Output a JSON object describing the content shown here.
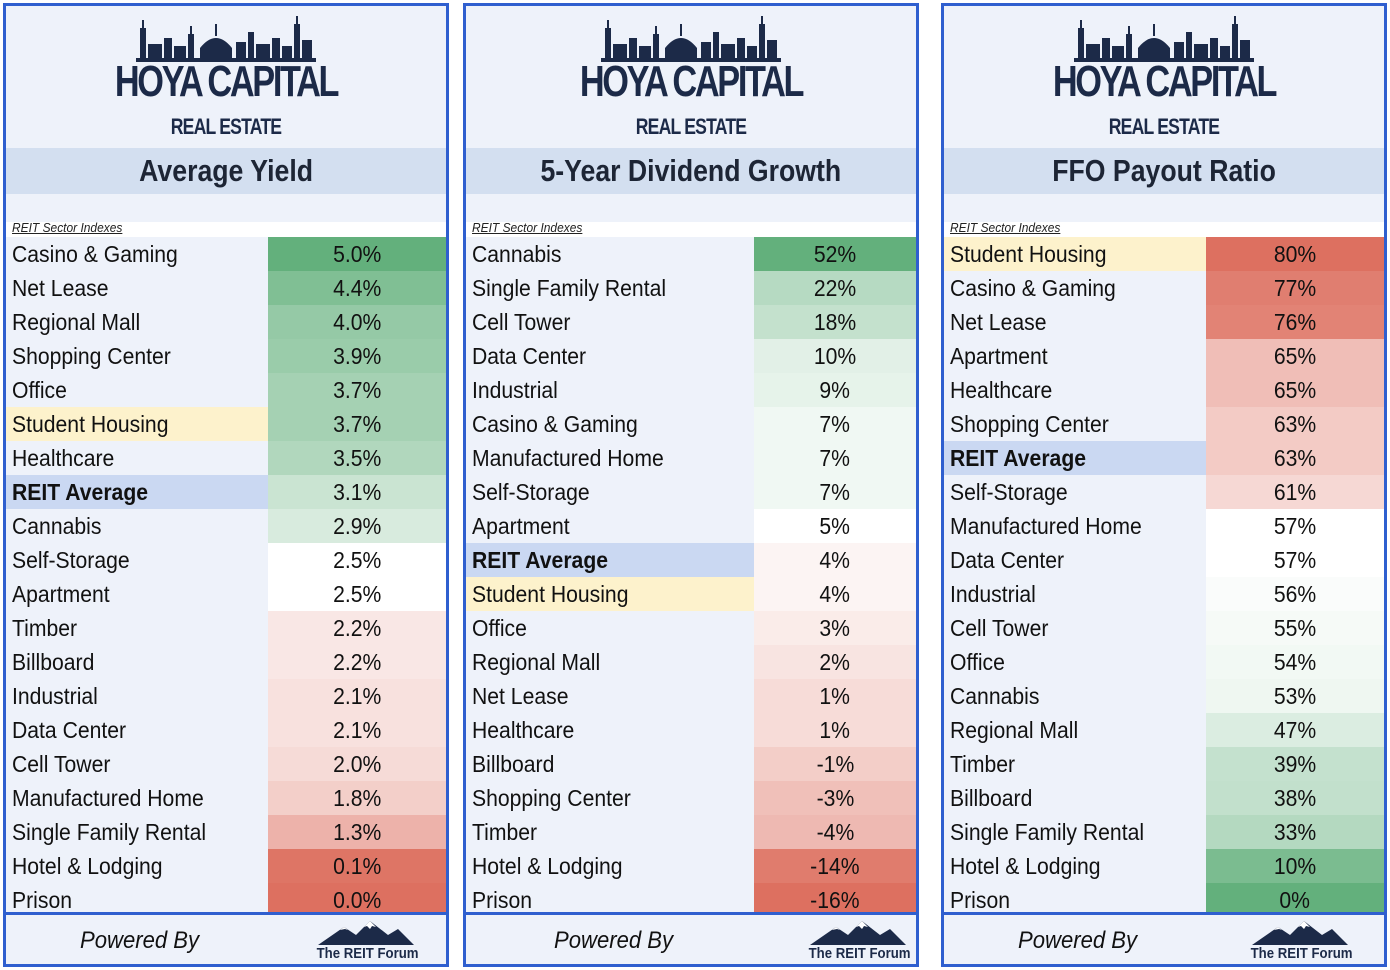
{
  "brand": {
    "name": "HOYA CAPITAL",
    "sub": "REAL ESTATE",
    "powered_by": "Powered By",
    "forum": "The REIT Forum"
  },
  "colors": {
    "border": "#2f5fcf",
    "title_band": "#d3dff0",
    "label_bg": "#eef2fa",
    "reit_average_label": "#cad8f2",
    "student_housing_label": "#fdf2cc",
    "scale_green": "#63b07c",
    "scale_mid": "#ffffff",
    "scale_red": "#dd7060"
  },
  "chart_data": [
    {
      "type": "table",
      "title": "Average Yield",
      "subheader": "REIT Sector Indexes",
      "value_suffix": "%",
      "color_scale": "high-green",
      "rows": [
        {
          "label": "Casino & Gaming",
          "value": 5.0,
          "display": "5.0%"
        },
        {
          "label": "Net Lease",
          "value": 4.4,
          "display": "4.4%"
        },
        {
          "label": "Regional Mall",
          "value": 4.0,
          "display": "4.0%"
        },
        {
          "label": "Shopping Center",
          "value": 3.9,
          "display": "3.9%"
        },
        {
          "label": "Office",
          "value": 3.7,
          "display": "3.7%"
        },
        {
          "label": "Student Housing",
          "value": 3.7,
          "display": "3.7%",
          "highlight": "student"
        },
        {
          "label": "Healthcare",
          "value": 3.5,
          "display": "3.5%"
        },
        {
          "label": "REIT Average",
          "value": 3.1,
          "display": "3.1%",
          "highlight": "average"
        },
        {
          "label": "Cannabis",
          "value": 2.9,
          "display": "2.9%"
        },
        {
          "label": "Self-Storage",
          "value": 2.5,
          "display": "2.5%"
        },
        {
          "label": "Apartment",
          "value": 2.5,
          "display": "2.5%"
        },
        {
          "label": "Timber",
          "value": 2.2,
          "display": "2.2%"
        },
        {
          "label": "Billboard",
          "value": 2.2,
          "display": "2.2%"
        },
        {
          "label": "Industrial",
          "value": 2.1,
          "display": "2.1%"
        },
        {
          "label": "Data Center",
          "value": 2.1,
          "display": "2.1%"
        },
        {
          "label": "Cell Tower",
          "value": 2.0,
          "display": "2.0%"
        },
        {
          "label": "Manufactured Home",
          "value": 1.8,
          "display": "1.8%"
        },
        {
          "label": "Single Family Rental",
          "value": 1.3,
          "display": "1.3%"
        },
        {
          "label": "Hotel & Lodging",
          "value": 0.1,
          "display": "0.1%"
        },
        {
          "label": "Prison",
          "value": 0.0,
          "display": "0.0%"
        }
      ]
    },
    {
      "type": "table",
      "title": "5-Year Dividend Growth",
      "subheader": "REIT Sector Indexes",
      "value_suffix": "%",
      "color_scale": "high-green",
      "rows": [
        {
          "label": "Cannabis",
          "value": 52,
          "display": "52%"
        },
        {
          "label": "Single Family Rental",
          "value": 22,
          "display": "22%"
        },
        {
          "label": "Cell Tower",
          "value": 18,
          "display": "18%"
        },
        {
          "label": "Data Center",
          "value": 10,
          "display": "10%"
        },
        {
          "label": "Industrial",
          "value": 9,
          "display": "9%"
        },
        {
          "label": "Casino & Gaming",
          "value": 7,
          "display": "7%"
        },
        {
          "label": "Manufactured Home",
          "value": 7,
          "display": "7%"
        },
        {
          "label": "Self-Storage",
          "value": 7,
          "display": "7%"
        },
        {
          "label": "Apartment",
          "value": 5,
          "display": "5%"
        },
        {
          "label": "REIT Average",
          "value": 4,
          "display": "4%",
          "highlight": "average"
        },
        {
          "label": "Student Housing",
          "value": 4,
          "display": "4%",
          "highlight": "student"
        },
        {
          "label": "Office",
          "value": 3,
          "display": "3%"
        },
        {
          "label": "Regional Mall",
          "value": 2,
          "display": "2%"
        },
        {
          "label": "Net Lease",
          "value": 1,
          "display": "1%"
        },
        {
          "label": "Healthcare",
          "value": 1,
          "display": "1%"
        },
        {
          "label": "Billboard",
          "value": -1,
          "display": "-1%"
        },
        {
          "label": "Shopping Center",
          "value": -3,
          "display": "-3%"
        },
        {
          "label": "Timber",
          "value": -4,
          "display": "-4%"
        },
        {
          "label": "Hotel & Lodging",
          "value": -14,
          "display": "-14%"
        },
        {
          "label": "Prison",
          "value": -16,
          "display": "-16%"
        }
      ]
    },
    {
      "type": "table",
      "title": "FFO Payout Ratio",
      "subheader": "REIT Sector Indexes",
      "value_suffix": "%",
      "color_scale": "high-red",
      "rows": [
        {
          "label": "Student Housing",
          "value": 80,
          "display": "80%",
          "highlight": "student"
        },
        {
          "label": "Casino & Gaming",
          "value": 77,
          "display": "77%"
        },
        {
          "label": "Net Lease",
          "value": 76,
          "display": "76%"
        },
        {
          "label": "Apartment",
          "value": 65,
          "display": "65%"
        },
        {
          "label": "Healthcare",
          "value": 65,
          "display": "65%"
        },
        {
          "label": "Shopping Center",
          "value": 63,
          "display": "63%"
        },
        {
          "label": "REIT Average",
          "value": 63,
          "display": "63%",
          "highlight": "average"
        },
        {
          "label": "Self-Storage",
          "value": 61,
          "display": "61%"
        },
        {
          "label": "Manufactured Home",
          "value": 57,
          "display": "57%"
        },
        {
          "label": "Data Center",
          "value": 57,
          "display": "57%"
        },
        {
          "label": "Industrial",
          "value": 56,
          "display": "56%"
        },
        {
          "label": "Cell Tower",
          "value": 55,
          "display": "55%"
        },
        {
          "label": "Office",
          "value": 54,
          "display": "54%"
        },
        {
          "label": "Cannabis",
          "value": 53,
          "display": "53%"
        },
        {
          "label": "Regional Mall",
          "value": 47,
          "display": "47%"
        },
        {
          "label": "Timber",
          "value": 39,
          "display": "39%"
        },
        {
          "label": "Billboard",
          "value": 38,
          "display": "38%"
        },
        {
          "label": "Single Family Rental",
          "value": 33,
          "display": "33%"
        },
        {
          "label": "Hotel & Lodging",
          "value": 10,
          "display": "10%"
        },
        {
          "label": "Prison",
          "value": 0,
          "display": "0%"
        }
      ]
    }
  ]
}
